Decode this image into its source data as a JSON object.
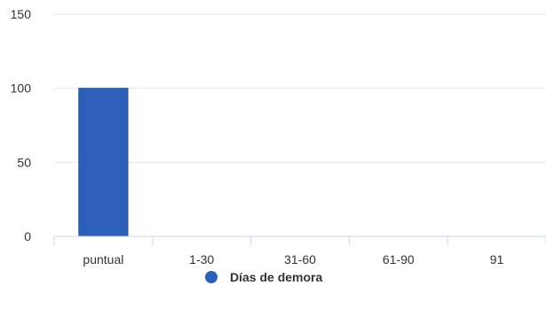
{
  "chart_data": {
    "type": "bar",
    "categories": [
      "puntual",
      "1-30",
      "31-60",
      "61-90",
      "91"
    ],
    "series": [
      {
        "name": "Días de demora",
        "values": [
          100,
          0,
          0,
          0,
          0
        ],
        "color": "#2b5fb8"
      }
    ],
    "ylim": [
      0,
      150
    ],
    "yticks": [
      0,
      50,
      100,
      150
    ],
    "grid": true,
    "legend_position": "bottom-center",
    "title": "",
    "xlabel": "",
    "ylabel": ""
  }
}
